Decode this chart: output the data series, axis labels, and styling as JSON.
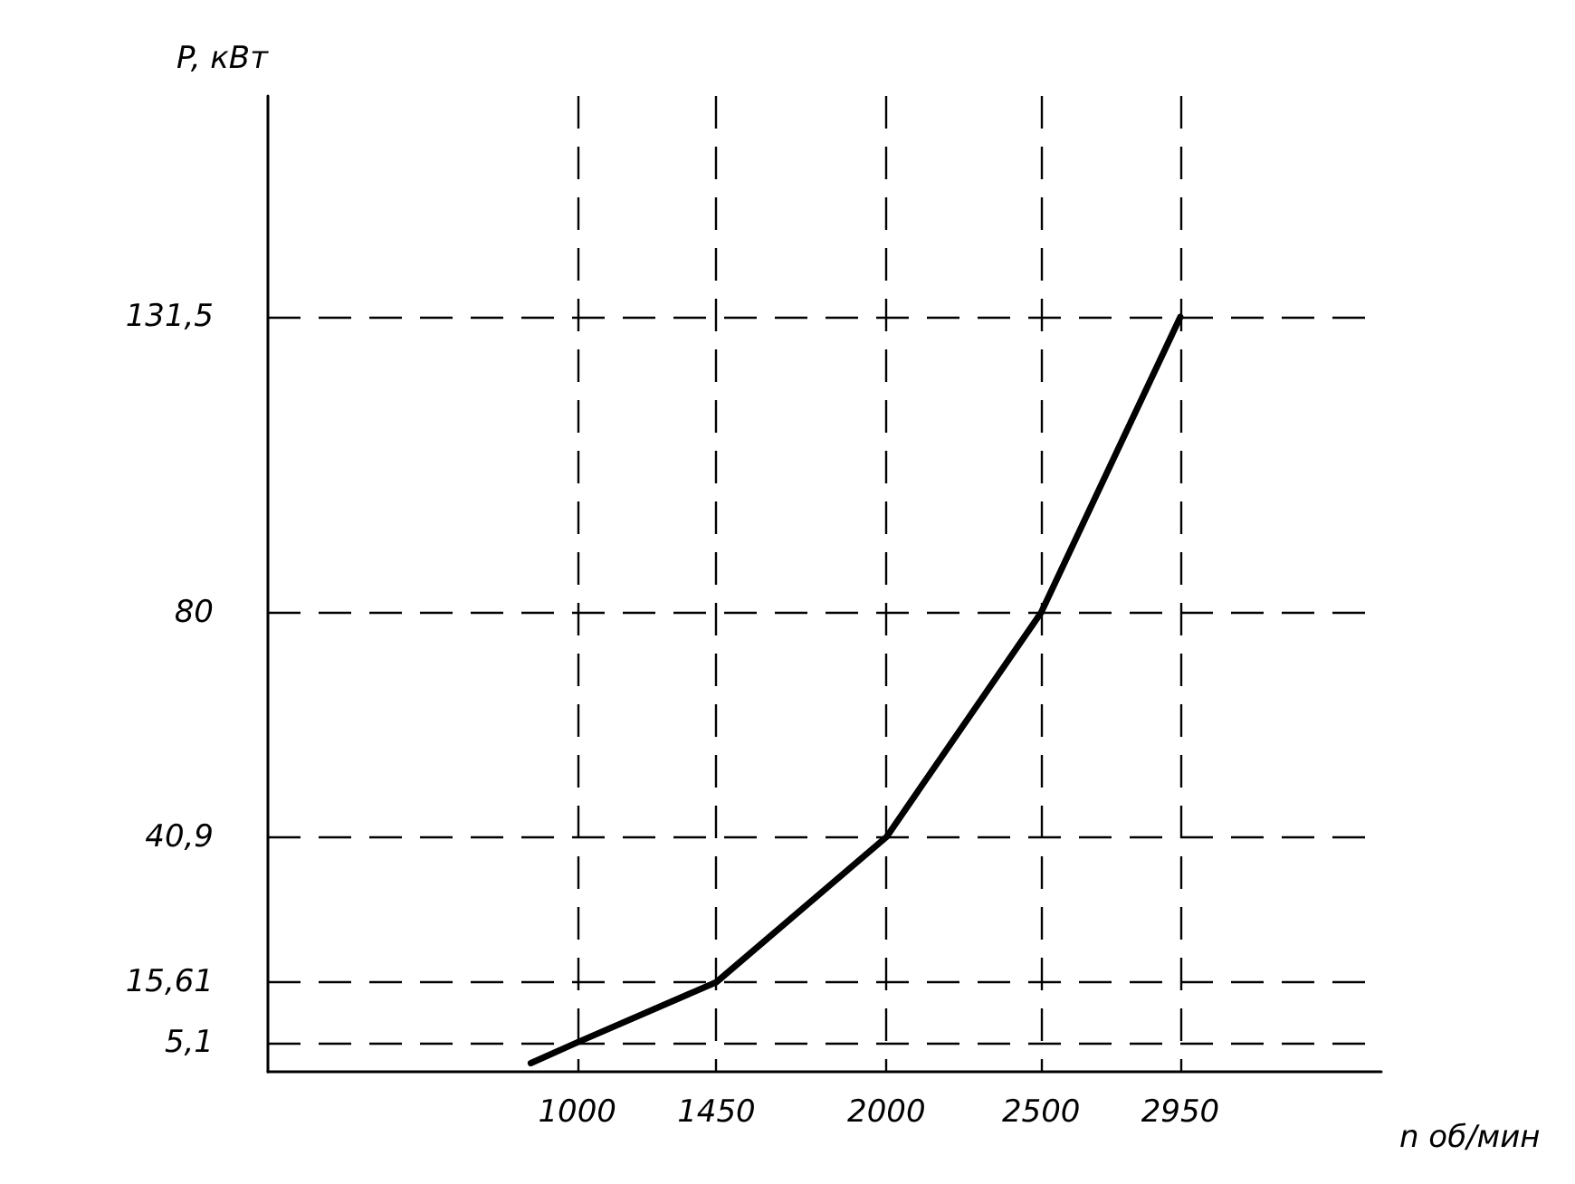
{
  "chart_data": {
    "type": "line",
    "xlabel": "n об/мин",
    "ylabel": "P, кВт",
    "x": [
      850,
      1000,
      1450,
      2000,
      2500,
      2950
    ],
    "series": [
      {
        "color": "#000000",
        "values": [
          1.5,
          5.1,
          15.61,
          40.9,
          80,
          131.5
        ]
      }
    ],
    "xlim": [
      0,
      3600
    ],
    "ylim": [
      0,
      170
    ],
    "xticks": [
      1000,
      1450,
      2000,
      2500,
      2950
    ],
    "yticks": [
      {
        "value": 5.1,
        "label": "5,1"
      },
      {
        "value": 15.61,
        "label": "15,61"
      },
      {
        "value": 40.9,
        "label": "40,9"
      },
      80,
      {
        "value": 131.5,
        "label": "131,5"
      }
    ],
    "grid": true,
    "marker": "none",
    "line_style": "solid"
  }
}
